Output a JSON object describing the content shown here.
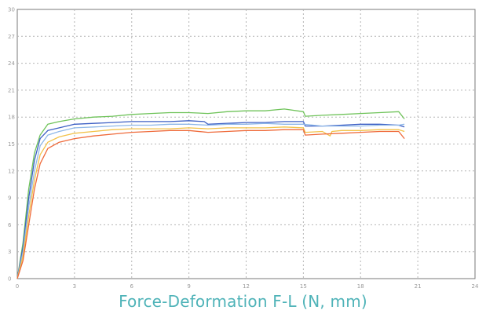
{
  "caption": "Force-Deformation F-L (N, mm)",
  "chart_data": {
    "type": "line",
    "title": "",
    "xlabel": "",
    "ylabel": "",
    "xlim": [
      0,
      24
    ],
    "ylim": [
      0,
      30
    ],
    "grid": true,
    "x_ticks": [
      {
        "value": 0,
        "label": "0"
      },
      {
        "value": 3,
        "label": "3"
      },
      {
        "value": 6,
        "label": "6"
      },
      {
        "value": 9,
        "label": "9"
      },
      {
        "value": 12,
        "label": "12"
      },
      {
        "value": 15,
        "label": "15"
      },
      {
        "value": 18,
        "label": "18"
      },
      {
        "value": 21,
        "label": "21"
      },
      {
        "value": 24,
        "label": "24"
      }
    ],
    "y_ticks": [
      {
        "value": 0,
        "label": "0"
      },
      {
        "value": 3,
        "label": "3"
      },
      {
        "value": 6,
        "label": "6"
      },
      {
        "value": 9,
        "label": "9"
      },
      {
        "value": 12,
        "label": "12"
      },
      {
        "value": 15,
        "label": "15"
      },
      {
        "value": 18,
        "label": "18"
      },
      {
        "value": 21,
        "label": "21"
      },
      {
        "value": 24,
        "label": "24"
      },
      {
        "value": 27,
        "label": "27"
      },
      {
        "value": 30,
        "label": "30"
      }
    ],
    "series": [
      {
        "color": "#6fc35a",
        "points": [
          [
            0,
            0
          ],
          [
            0.3,
            4
          ],
          [
            0.6,
            10
          ],
          [
            0.9,
            14
          ],
          [
            1.2,
            16
          ],
          [
            1.6,
            17.2
          ],
          [
            2.2,
            17.5
          ],
          [
            3,
            17.8
          ],
          [
            4,
            18
          ],
          [
            5,
            18.1
          ],
          [
            6,
            18.3
          ],
          [
            7,
            18.4
          ],
          [
            8,
            18.5
          ],
          [
            9,
            18.5
          ],
          [
            10,
            18.4
          ],
          [
            11,
            18.6
          ],
          [
            12,
            18.7
          ],
          [
            13,
            18.7
          ],
          [
            14,
            18.9
          ],
          [
            15,
            18.6
          ],
          [
            15.1,
            18.1
          ],
          [
            16,
            18.2
          ],
          [
            17,
            18.3
          ],
          [
            18,
            18.4
          ],
          [
            19,
            18.5
          ],
          [
            20,
            18.6
          ],
          [
            20.3,
            17.8
          ]
        ]
      },
      {
        "color": "#3d5fc4",
        "points": [
          [
            0,
            0
          ],
          [
            0.3,
            3.5
          ],
          [
            0.6,
            9
          ],
          [
            0.9,
            13.2
          ],
          [
            1.2,
            15.6
          ],
          [
            1.6,
            16.5
          ],
          [
            2.2,
            16.8
          ],
          [
            3,
            17.2
          ],
          [
            4,
            17.3
          ],
          [
            5,
            17.4
          ],
          [
            6,
            17.5
          ],
          [
            7,
            17.5
          ],
          [
            8,
            17.5
          ],
          [
            9,
            17.6
          ],
          [
            9.8,
            17.5
          ],
          [
            10,
            17.2
          ],
          [
            11,
            17.3
          ],
          [
            12,
            17.4
          ],
          [
            13,
            17.4
          ],
          [
            14,
            17.5
          ],
          [
            15,
            17.5
          ],
          [
            15.1,
            17.0
          ],
          [
            16,
            17.0
          ],
          [
            17,
            17.1
          ],
          [
            18,
            17.2
          ],
          [
            19,
            17.2
          ],
          [
            20,
            17.1
          ],
          [
            20.3,
            16.9
          ]
        ]
      },
      {
        "color": "#8fb8e8",
        "points": [
          [
            0,
            0
          ],
          [
            0.3,
            3
          ],
          [
            0.6,
            8
          ],
          [
            0.9,
            12
          ],
          [
            1.2,
            14.8
          ],
          [
            1.6,
            16.0
          ],
          [
            2.2,
            16.4
          ],
          [
            3,
            16.8
          ],
          [
            4,
            16.9
          ],
          [
            5,
            17.0
          ],
          [
            6,
            17.1
          ],
          [
            7,
            17.1
          ],
          [
            8,
            17.2
          ],
          [
            9,
            17.2
          ],
          [
            10,
            17.1
          ],
          [
            11,
            17.2
          ],
          [
            12,
            17.2
          ],
          [
            13,
            17.3
          ],
          [
            14,
            17.2
          ],
          [
            15,
            17.2
          ],
          [
            16,
            17.0
          ],
          [
            17,
            17.0
          ],
          [
            18,
            17.0
          ],
          [
            19,
            17.1
          ],
          [
            20,
            17.1
          ],
          [
            20.3,
            17.2
          ]
        ]
      },
      {
        "color": "#f2c248",
        "points": [
          [
            0,
            0
          ],
          [
            0.3,
            2.5
          ],
          [
            0.6,
            7
          ],
          [
            0.9,
            11
          ],
          [
            1.2,
            13.8
          ],
          [
            1.6,
            15.2
          ],
          [
            2.2,
            15.8
          ],
          [
            3,
            16.2
          ],
          [
            4,
            16.4
          ],
          [
            5,
            16.6
          ],
          [
            6,
            16.7
          ],
          [
            7,
            16.7
          ],
          [
            8,
            16.7
          ],
          [
            9,
            16.8
          ],
          [
            10,
            16.7
          ],
          [
            11,
            16.8
          ],
          [
            12,
            16.8
          ],
          [
            13,
            16.8
          ],
          [
            14,
            16.9
          ],
          [
            15,
            16.8
          ],
          [
            15.1,
            16.3
          ],
          [
            16,
            16.4
          ],
          [
            16.4,
            15.9
          ],
          [
            16.5,
            16.4
          ],
          [
            17,
            16.5
          ],
          [
            18,
            16.5
          ],
          [
            19,
            16.6
          ],
          [
            20,
            16.6
          ],
          [
            20.3,
            16.4
          ]
        ]
      },
      {
        "color": "#ef6a3a",
        "points": [
          [
            0,
            0
          ],
          [
            0.3,
            2
          ],
          [
            0.6,
            6
          ],
          [
            0.9,
            10
          ],
          [
            1.2,
            12.8
          ],
          [
            1.6,
            14.5
          ],
          [
            2.2,
            15.2
          ],
          [
            3,
            15.6
          ],
          [
            4,
            15.9
          ],
          [
            5,
            16.1
          ],
          [
            6,
            16.3
          ],
          [
            7,
            16.4
          ],
          [
            8,
            16.5
          ],
          [
            9,
            16.5
          ],
          [
            10,
            16.3
          ],
          [
            11,
            16.4
          ],
          [
            12,
            16.5
          ],
          [
            13,
            16.5
          ],
          [
            14,
            16.6
          ],
          [
            15,
            16.6
          ],
          [
            15.1,
            16.0
          ],
          [
            16,
            16.1
          ],
          [
            17,
            16.2
          ],
          [
            18,
            16.3
          ],
          [
            19,
            16.4
          ],
          [
            20,
            16.4
          ],
          [
            20.3,
            15.6
          ]
        ]
      }
    ]
  }
}
